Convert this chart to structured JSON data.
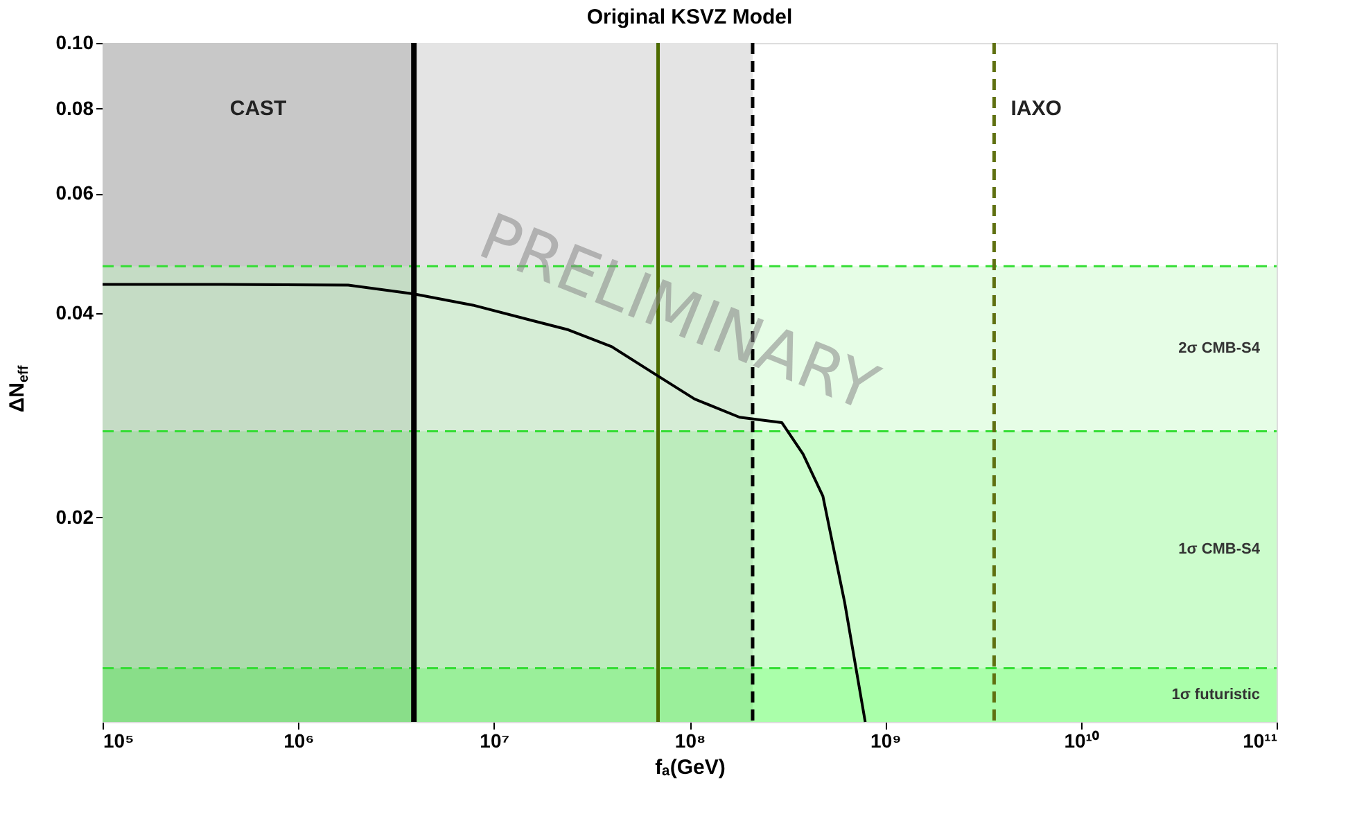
{
  "chart_data": {
    "type": "line",
    "title": "Original KSVZ Model",
    "xlabel": "fₐ(GeV)",
    "ylabel": "ΔN$_{eff}$",
    "log": "xy",
    "xlim": [
      100000,
      100000000000
    ],
    "ylim": [
      0.01,
      0.1
    ],
    "xticks": [
      {
        "value": 100000,
        "label": "10⁵"
      },
      {
        "value": 1000000,
        "label": "10⁶"
      },
      {
        "value": 10000000,
        "label": "10⁷"
      },
      {
        "value": 100000000,
        "label": "10⁸"
      },
      {
        "value": 1000000000,
        "label": "10⁹"
      },
      {
        "value": 10000000000,
        "label": "10¹⁰"
      },
      {
        "value": 100000000000,
        "label": "10¹¹"
      }
    ],
    "yticks": [
      0.02,
      0.04,
      0.06,
      0.08,
      {
        "value": 0.1,
        "label": "0.10"
      }
    ],
    "grid": false,
    "marker": "none",
    "line_style": "solid",
    "series": [
      {
        "color": "#000000",
        "x": [
          100000,
          410000,
          1800000,
          3900000,
          7800000,
          24000000,
          40000000,
          68000000,
          106000000,
          180000000,
          296000000,
          380000000,
          480000000,
          620000000,
          790000000
        ],
        "values": [
          0.0441,
          0.0441,
          0.044,
          0.0427,
          0.0411,
          0.0378,
          0.0357,
          0.0324,
          0.0299,
          0.0281,
          0.0276,
          0.0248,
          0.0215,
          0.015,
          0.01
        ]
      }
    ],
    "bands": [
      {
        "axis": "x",
        "from": 100000,
        "to": 3900000,
        "label": "CAST",
        "color": "#c8c8c8"
      },
      {
        "axis": "x",
        "from": 3900000,
        "to": 210000000,
        "label": null,
        "color": "#e4e4e4"
      },
      {
        "axis": "y",
        "from": 0.0268,
        "to": 0.0469,
        "label": "2σ CMB-S4",
        "color": "#c0fac0"
      },
      {
        "axis": "y",
        "from": 0.012,
        "to": 0.0268,
        "label": "1σ CMB-S4",
        "color": "#80f880"
      },
      {
        "axis": "y",
        "from": 0.01,
        "to": 0.012,
        "label": "1σ futuristic",
        "color": "#2aff2a"
      }
    ],
    "ref_lines": [
      {
        "axis": "y",
        "value": 0.0469,
        "label": null,
        "color": "#33dd33",
        "line_style": "dashed"
      },
      {
        "axis": "y",
        "value": 0.0268,
        "label": null,
        "color": "#33dd33",
        "line_style": "dashed"
      },
      {
        "axis": "y",
        "value": 0.012,
        "label": null,
        "color": "#33dd33",
        "line_style": "dashed"
      },
      {
        "axis": "x",
        "value": 3900000,
        "label": null,
        "color": "#000000",
        "line_style": "solid"
      },
      {
        "axis": "x",
        "value": 69000000,
        "label": null,
        "color": "#4d6b00",
        "line_style": "solid"
      },
      {
        "axis": "x",
        "value": 210000000,
        "label": null,
        "color": "#000000",
        "line_style": "dashed"
      },
      {
        "axis": "x",
        "value": 3600000000,
        "label": "IAXO",
        "color": "#5f7010",
        "line_style": "dashed"
      }
    ],
    "annotations": [
      "PRELIMINARY"
    ]
  }
}
